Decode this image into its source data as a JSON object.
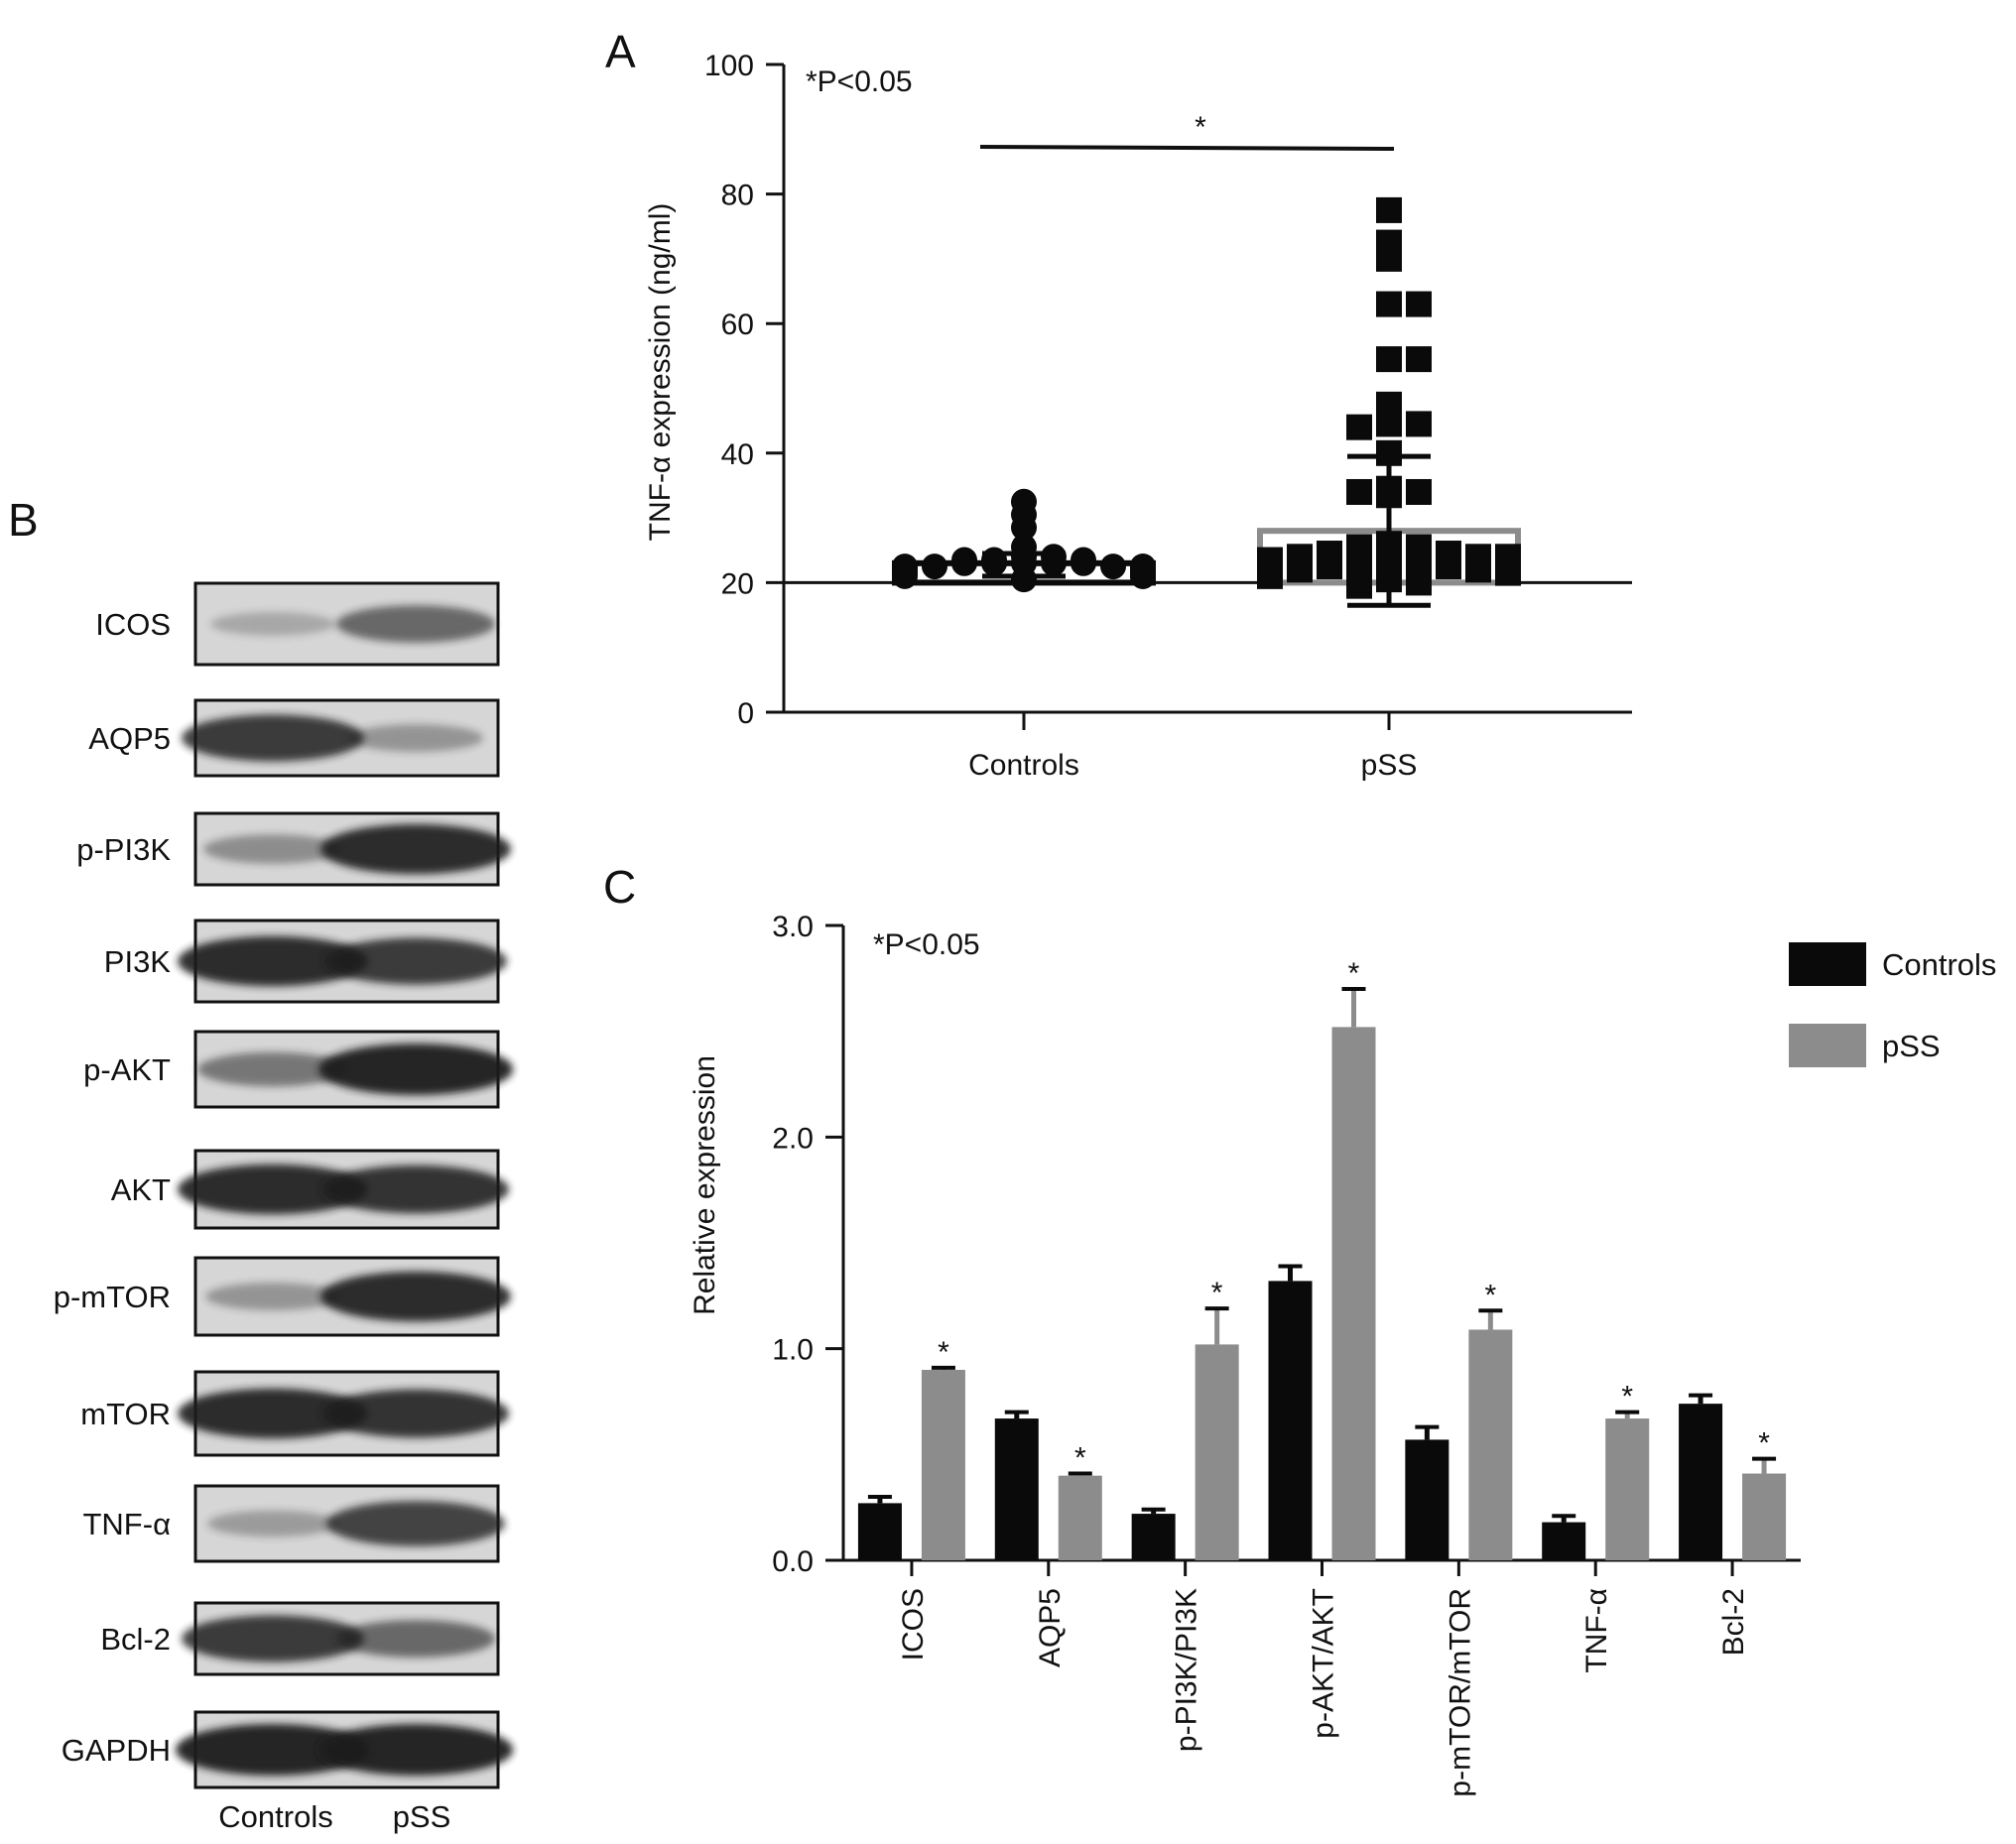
{
  "colors": {
    "controls": "#0a0a0a",
    "pss": "#8c8c8c",
    "axis": "#111111",
    "blot_background": "#d6d6d6",
    "band": "#1a1a1a"
  },
  "chart_data": [
    {
      "panel": "A",
      "type": "scatter",
      "ylabel": "TNF-α expression (ng/ml)",
      "xlabel": "",
      "categories": [
        "Controls",
        "pSS"
      ],
      "ylim": [
        0,
        100
      ],
      "yticks": [
        0,
        20,
        40,
        60,
        80,
        100
      ],
      "annotation": "*P<0.05",
      "significance_marker": "*",
      "bar_baseline": 20,
      "series": [
        {
          "category": "Controls",
          "marker": "circle",
          "bar_top": 23,
          "error": [
            21,
            24.5
          ],
          "points": [
            30.5,
            32.5,
            28.5,
            25.5,
            24,
            24,
            23.5,
            23.5,
            23,
            23,
            23,
            22.5,
            22.5,
            22.5,
            22,
            22,
            22,
            21.5,
            21.5,
            21,
            21,
            20.5,
            23,
            22,
            21.5,
            22.5,
            23,
            21,
            22,
            22.5,
            23.5,
            21.5
          ]
        },
        {
          "category": "pSS",
          "marker": "square",
          "bar_top": 28,
          "error": [
            16.5,
            39.5
          ],
          "points": [
            77.5,
            72.5,
            70,
            63,
            63,
            54.5,
            54.5,
            47.5,
            44.5,
            44.5,
            44,
            40,
            34,
            34,
            34.5,
            33.5,
            26,
            25.5,
            25.5,
            25,
            25,
            24.5,
            24.5,
            24,
            24,
            23.5,
            23,
            23,
            22.5,
            22.5,
            22,
            21.5,
            21,
            20.5,
            20,
            19.5,
            24,
            23,
            22,
            25
          ]
        }
      ]
    },
    {
      "panel": "C",
      "type": "bar",
      "ylabel": "Relative expression",
      "xlabel": "",
      "ylim": [
        0,
        3
      ],
      "yticks": [
        "0.0",
        "1.0",
        "2.0",
        "3.0"
      ],
      "annotation": "*P<0.05",
      "categories": [
        "ICOS",
        "AQP5",
        "p-PI3K/PI3K",
        "p-AKT/AKT",
        "p-mTOR/mTOR",
        "TNF-α",
        "Bcl-2"
      ],
      "legend_position": "top-right",
      "series": [
        {
          "name": "Controls",
          "values": [
            0.27,
            0.67,
            0.22,
            1.32,
            0.57,
            0.18,
            0.74
          ],
          "errors": [
            0.03,
            0.03,
            0.02,
            0.07,
            0.06,
            0.03,
            0.04
          ]
        },
        {
          "name": "pSS",
          "values": [
            0.9,
            0.4,
            1.02,
            2.52,
            1.09,
            0.67,
            0.41
          ],
          "errors": [
            0.01,
            0.01,
            0.17,
            0.18,
            0.09,
            0.03,
            0.07
          ]
        }
      ],
      "significance": [
        "*",
        "*",
        "*",
        "*",
        "*",
        "*",
        "*"
      ]
    }
  ],
  "panels": {
    "a_letter": "A",
    "b_letter": "B",
    "c_letter": "C"
  },
  "western_blot": {
    "lane_labels": [
      "Controls",
      "pSS"
    ],
    "rows": [
      {
        "label": "ICOS",
        "controls": 0.12,
        "pss": 0.55
      },
      {
        "label": "AQP5",
        "controls": 0.85,
        "pss": 0.25
      },
      {
        "label": "p-PI3K",
        "controls": 0.3,
        "pss": 0.95
      },
      {
        "label": "PI3K",
        "controls": 0.95,
        "pss": 0.85
      },
      {
        "label": "p-AKT",
        "controls": 0.45,
        "pss": 1.0
      },
      {
        "label": "AKT",
        "controls": 0.95,
        "pss": 0.9
      },
      {
        "label": "p-mTOR",
        "controls": 0.25,
        "pss": 0.95
      },
      {
        "label": "mTOR",
        "controls": 0.95,
        "pss": 0.9
      },
      {
        "label": "TNF-α",
        "controls": 0.2,
        "pss": 0.8
      },
      {
        "label": "Bcl-2",
        "controls": 0.85,
        "pss": 0.55
      },
      {
        "label": "GAPDH",
        "controls": 1.0,
        "pss": 1.0
      }
    ]
  }
}
